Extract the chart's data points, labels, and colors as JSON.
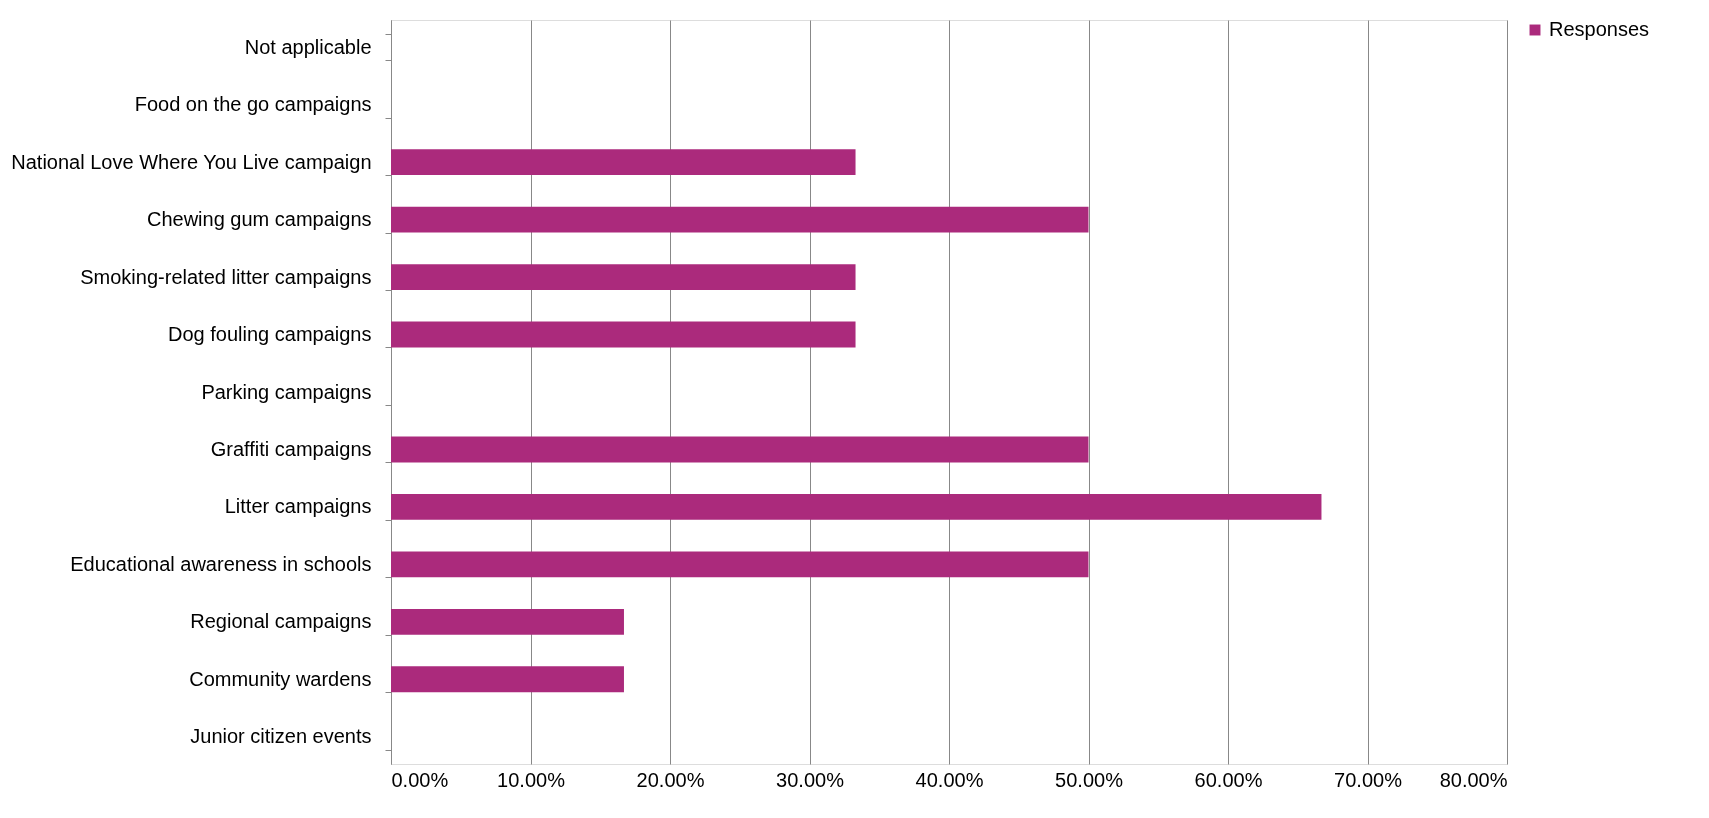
{
  "chart_data": {
    "type": "bar",
    "orientation": "horizontal",
    "categories": [
      "Not applicable",
      "Food on the go campaigns",
      "National Love Where You Live campaign",
      "Chewing gum campaigns",
      "Smoking-related litter campaigns",
      "Dog fouling campaigns",
      "Parking campaigns",
      "Graffiti campaigns",
      "Litter campaigns",
      "Educational awareness in schools",
      "Regional campaigns",
      "Community wardens",
      "Junior citizen events"
    ],
    "series": [
      {
        "name": "Responses",
        "color": "#ab2a7c",
        "values": [
          0,
          0,
          33.3,
          50,
          33.3,
          33.3,
          0,
          50,
          66.7,
          50,
          16.7,
          16.7,
          0
        ]
      }
    ],
    "xlim": [
      0,
      80
    ],
    "xticks": [
      {
        "value": 0,
        "label": "0.00%"
      },
      {
        "value": 10,
        "label": "10.00%"
      },
      {
        "value": 20,
        "label": "20.00%"
      },
      {
        "value": 30,
        "label": "30.00%"
      },
      {
        "value": 40,
        "label": "40.00%"
      },
      {
        "value": 50,
        "label": "50.00%"
      },
      {
        "value": 60,
        "label": "60.00%"
      },
      {
        "value": 70,
        "label": "70.00%"
      },
      {
        "value": 80,
        "label": "80.00%"
      }
    ],
    "grid": "x",
    "legend": "right"
  }
}
